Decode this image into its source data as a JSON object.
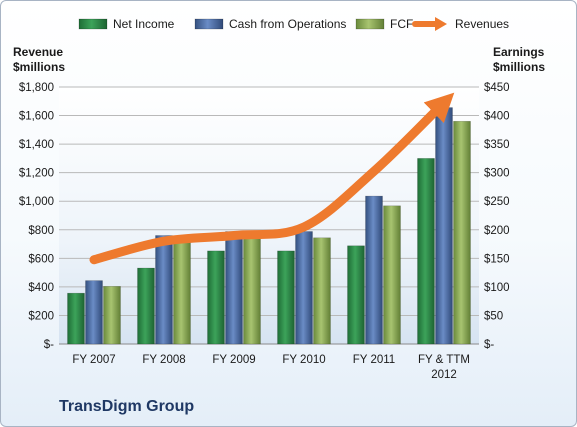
{
  "chart_data": {
    "type": "bar",
    "categories": [
      "FY 2007",
      "FY 2008",
      "FY 2009",
      "FY 2010",
      "FY 2011",
      "FY & TTM 2012"
    ],
    "series": [
      {
        "name": "Net Income",
        "axis": "right",
        "color": "#2e8b4a",
        "values": [
          89,
          133,
          163,
          163,
          172,
          325
        ]
      },
      {
        "name": "Cash from Operations",
        "axis": "right",
        "color": "#4f6fa8",
        "values": [
          111,
          190,
          197,
          197,
          259,
          414
        ]
      },
      {
        "name": "FCF",
        "axis": "right",
        "color": "#8aaa55",
        "values": [
          101,
          180,
          185,
          186,
          242,
          390
        ]
      },
      {
        "name": "Revenues",
        "axis": "left",
        "type": "arrow-line",
        "color": "#ee7a2e",
        "values": [
          590,
          720,
          760,
          820,
          1210,
          1690
        ]
      }
    ],
    "left_axis": {
      "title_lines": [
        "Revenue",
        "$millions"
      ],
      "ylim": [
        0,
        1800
      ],
      "ticks": [
        "$-",
        "$200",
        "$400",
        "$600",
        "$800",
        "$1,000",
        "$1,200",
        "$1,400",
        "$1,600",
        "$1,800"
      ]
    },
    "right_axis": {
      "title_lines": [
        "Earnings",
        "$millions"
      ],
      "ylim": [
        0,
        450
      ],
      "ticks": [
        "$-",
        "$50",
        "$100",
        "$150",
        "$200",
        "$250",
        "$300",
        "$350",
        "$400",
        "$450"
      ]
    },
    "legend": [
      "Net Income",
      "Cash from Operations",
      "FCF",
      "Revenues"
    ],
    "legend_position": "top",
    "grid": true,
    "footer": "TransDigm Group"
  }
}
